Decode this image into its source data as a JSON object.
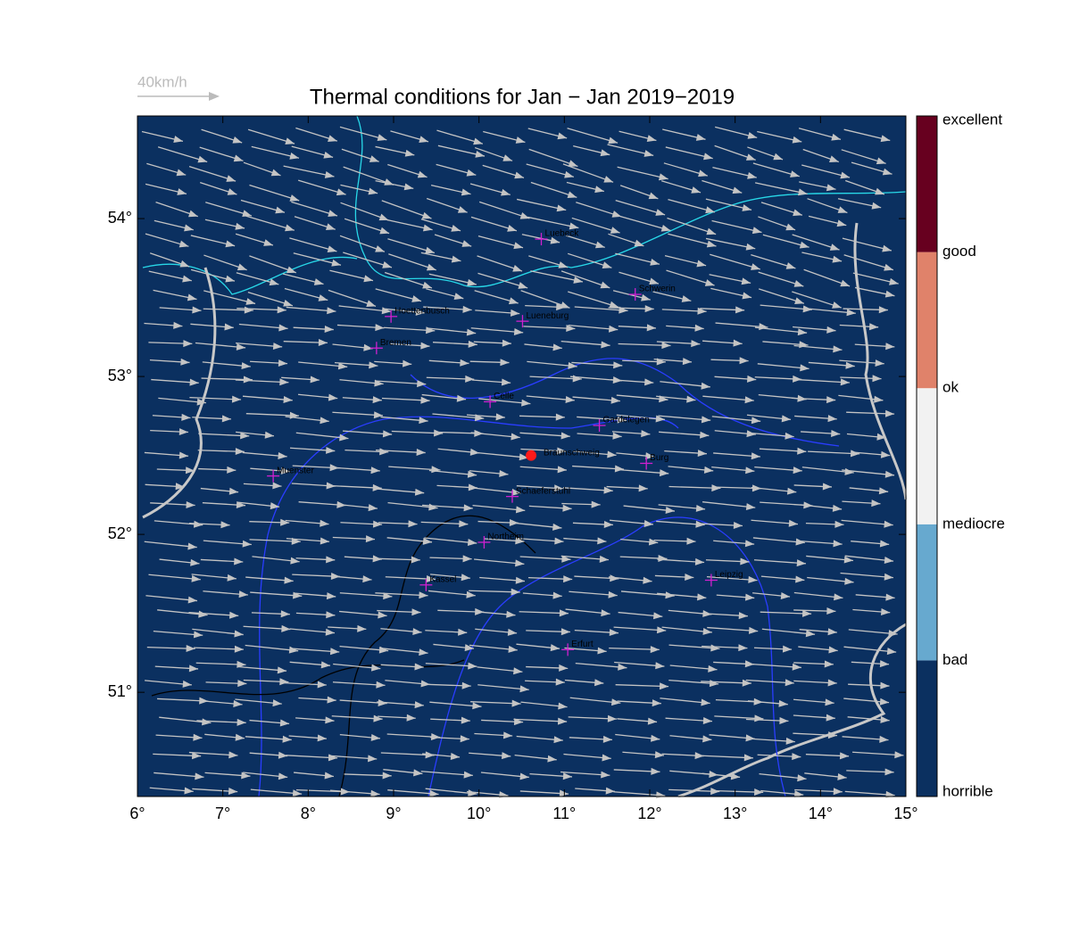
{
  "chart_data": {
    "type": "map",
    "title": "Thermal conditions for Jan − Jan  2019−2019",
    "wind_legend": "40km/h",
    "background": "#0b3060",
    "xlim": [
      6,
      15
    ],
    "ylim": [
      50.34,
      54.65
    ],
    "xticks": [
      {
        "value": 6,
        "label": "6°"
      },
      {
        "value": 7,
        "label": "7°"
      },
      {
        "value": 8,
        "label": "8°"
      },
      {
        "value": 9,
        "label": "9°"
      },
      {
        "value": 10,
        "label": "10°"
      },
      {
        "value": 11,
        "label": "11°"
      },
      {
        "value": 12,
        "label": "12°"
      },
      {
        "value": 13,
        "label": "13°"
      },
      {
        "value": 14,
        "label": "14°"
      },
      {
        "value": 15,
        "label": "15°"
      }
    ],
    "yticks": [
      {
        "value": 51,
        "label": "51°"
      },
      {
        "value": 52,
        "label": "52°"
      },
      {
        "value": 53,
        "label": "53°"
      },
      {
        "value": 54,
        "label": "54°"
      }
    ],
    "marker_color": "#d020d0",
    "locations": [
      {
        "name": "Luebeck",
        "lon": 10.73,
        "lat": 53.87
      },
      {
        "name": "Schwerin",
        "lon": 11.83,
        "lat": 53.52
      },
      {
        "name": "Hoettenbusch",
        "lon": 8.97,
        "lat": 53.38
      },
      {
        "name": "Lueneburg",
        "lon": 10.51,
        "lat": 53.35
      },
      {
        "name": "Bremen",
        "lon": 8.8,
        "lat": 53.18
      },
      {
        "name": "Celle",
        "lon": 10.13,
        "lat": 52.84
      },
      {
        "name": "Gardelegen",
        "lon": 11.41,
        "lat": 52.69
      },
      {
        "name": "Burg",
        "lon": 11.96,
        "lat": 52.45
      },
      {
        "name": "Muenster",
        "lon": 7.59,
        "lat": 52.37
      },
      {
        "name": "Schaeferstuhl",
        "lon": 10.39,
        "lat": 52.24
      },
      {
        "name": "Northeim",
        "lon": 10.06,
        "lat": 51.95
      },
      {
        "name": "Kassel",
        "lon": 9.38,
        "lat": 51.68
      },
      {
        "name": "Leipzig",
        "lon": 12.72,
        "lat": 51.71
      },
      {
        "name": "Erfurt",
        "lon": 11.04,
        "lat": 51.27
      }
    ],
    "highlight": {
      "name": "Braunschweig",
      "lon": 10.61,
      "lat": 52.5,
      "color": "#ff1a1a"
    },
    "colorbar": {
      "labels": [
        "horrible",
        "bad",
        "mediocre",
        "ok",
        "good",
        "excellent"
      ],
      "colors": [
        "#0b3060",
        "#67a9cf",
        "#f2f2f2",
        "#e0826a",
        "#67001f"
      ]
    }
  }
}
